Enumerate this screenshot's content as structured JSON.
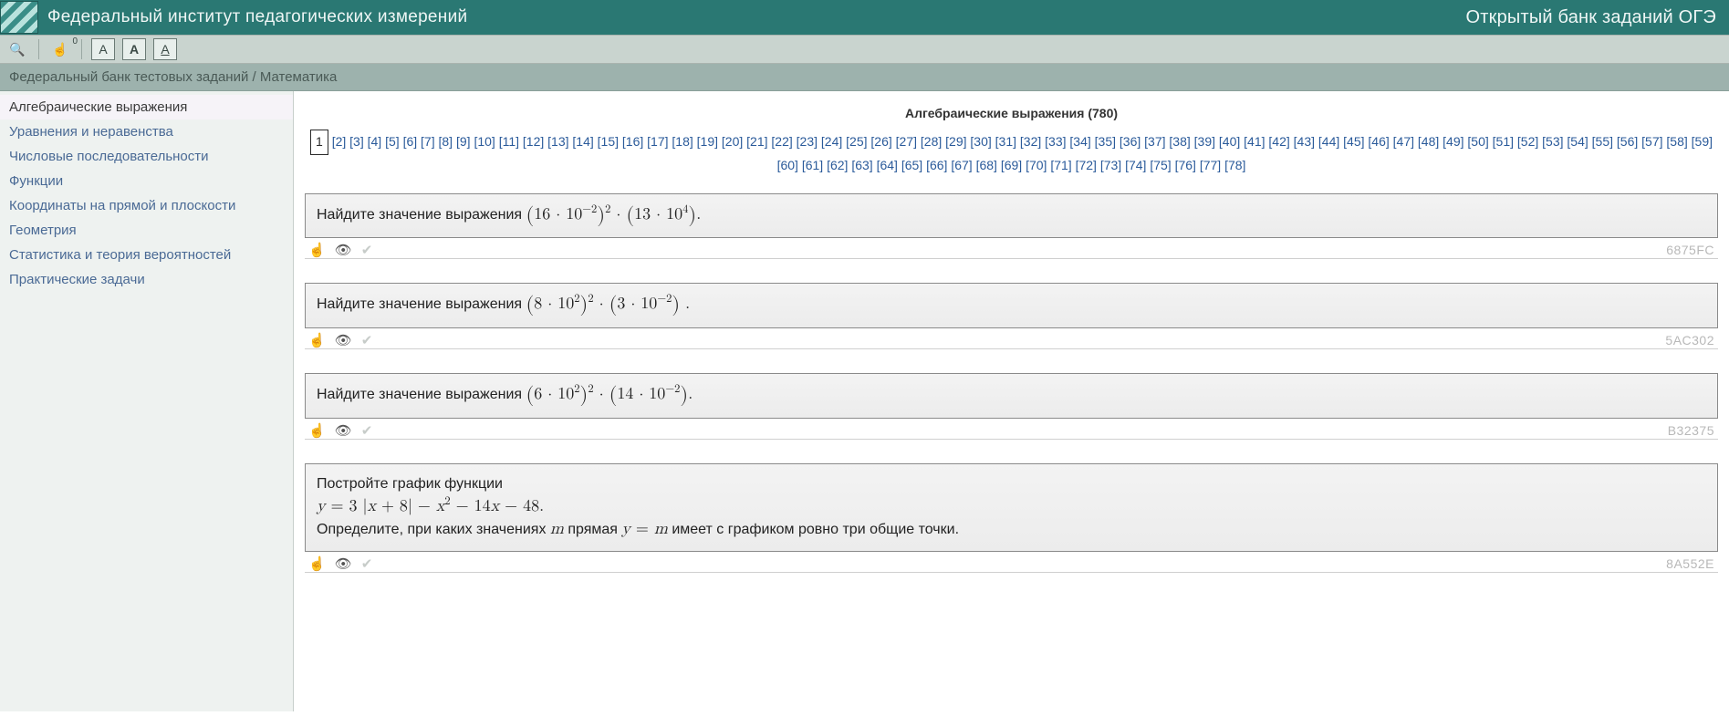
{
  "header": {
    "title": "Федеральный институт педагогических измерений",
    "subtitle": "Открытый банк заданий ОГЭ"
  },
  "toolbar": {
    "search_icon": "🔍",
    "hand_icon": "☝",
    "hand_badge": "0",
    "fontA_framed": "A",
    "fontA_bold": "A",
    "fontA_under": "A"
  },
  "breadcrumb": "Федеральный банк тестовых заданий / Математика",
  "sidebar": {
    "items": [
      {
        "label": "Алгебраические выражения",
        "active": true
      },
      {
        "label": "Уравнения и неравенства",
        "active": false
      },
      {
        "label": "Числовые последовательности",
        "active": false
      },
      {
        "label": "Функции",
        "active": false
      },
      {
        "label": "Координаты на прямой и плоскости",
        "active": false
      },
      {
        "label": "Геометрия",
        "active": false
      },
      {
        "label": "Статистика и теория вероятностей",
        "active": false
      },
      {
        "label": "Практические задачи",
        "active": false
      }
    ]
  },
  "main": {
    "heading": "Алгебраические выражения (780)",
    "pager": {
      "total": 78,
      "current": 1
    },
    "task_prefix": "Найдите значение выражения",
    "task_icons": {
      "hand": "☝",
      "eye": "👁",
      "check": "✔"
    },
    "tasks": [
      {
        "id": "6875FC",
        "math_html": "<span class='bigpar'>(</span>16 · 10<sup>−2</sup><span class='bigpar'>)</span><sup>2</sup> · <span class='bigpar'>(</span>13 · 10<sup>4</sup><span class='bigpar'>)</span>."
      },
      {
        "id": "5AC302",
        "math_html": "<span class='bigpar'>(</span>8 · 10<sup>2</sup><span class='bigpar'>)</span><sup>2</sup> · <span class='bigpar'>(</span>3 · 10<sup>−2</sup><span class='bigpar'>)</span> ."
      },
      {
        "id": "B32375",
        "math_html": "<span class='bigpar'>(</span>6 · 10<sup>2</sup><span class='bigpar'>)</span><sup>2</sup> · <span class='bigpar'>(</span>14 · 10<sup>−2</sup><span class='bigpar'>)</span>."
      },
      {
        "id": "8A552E",
        "custom_html": "<p>Постройте график функции</p><p class='math'><span class='ital'>y</span> = 3 |<span class='ital'>x</span> + 8| − <span class='ital'>x</span><sup>2</sup> − 14<span class='ital'>x</span> − 48.</p><p>Определите, при каких значениях <span class='math ital'>m</span> прямая <span class='math'><span class='ital'>y</span> = <span class='ital'>m</span></span> имеет с графиком ровно три общие точки.</p>"
      }
    ]
  },
  "colors": {
    "header_bg": "#2a7873",
    "toolbar_bg": "#c9d4cf",
    "breadcrumb_bg": "#9db2ad",
    "sidebar_bg": "#eef2f0",
    "link": "#2a5a9a",
    "task_id": "#b8b8b8"
  }
}
